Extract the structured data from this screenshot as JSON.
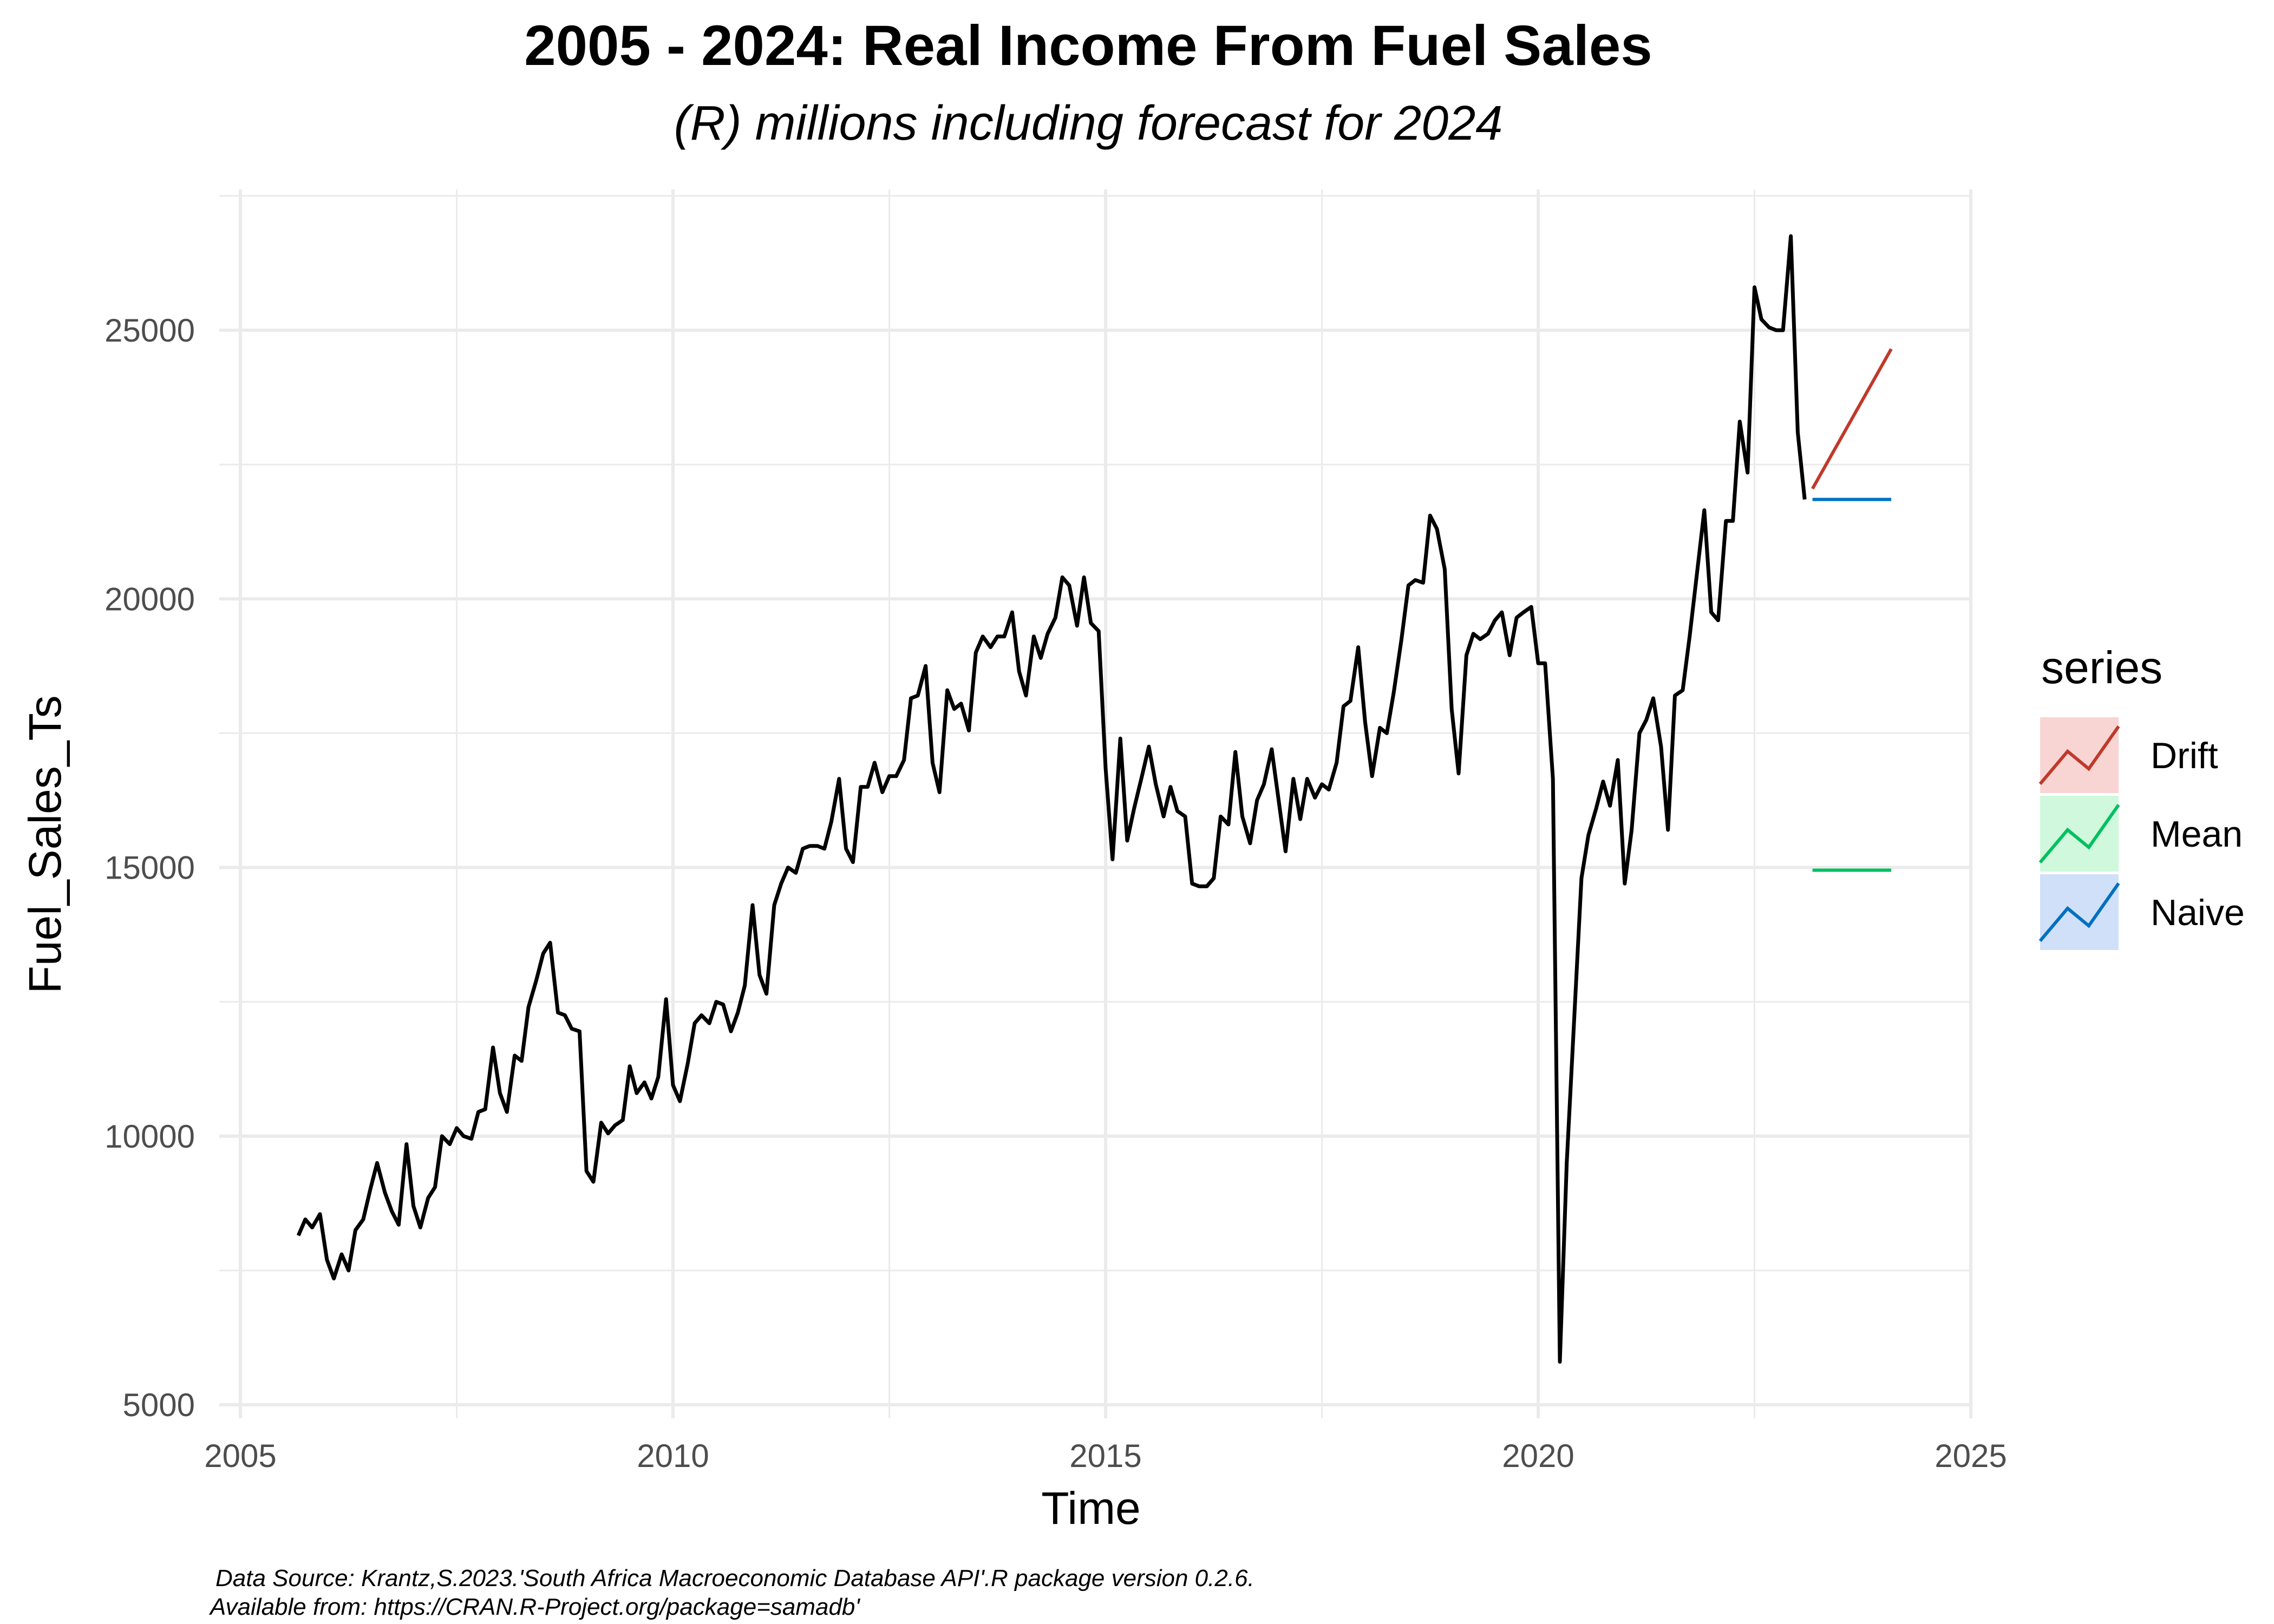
{
  "chart_data": {
    "type": "line",
    "title": "2005 - 2024: Real Income From Fuel Sales",
    "subtitle": "(R) millions including forecast for 2024",
    "xlabel": "Time",
    "ylabel": "Fuel_Sales_Ts",
    "xlim": [
      2005,
      2025
    ],
    "ylim": [
      5000,
      27500
    ],
    "x_ticks": [
      "2005",
      "2010",
      "2015",
      "2020",
      "2025"
    ],
    "y_ticks": [
      "5000",
      "10000",
      "15000",
      "20000",
      "25000"
    ],
    "grid": true,
    "legend": {
      "title": "series",
      "position": "right"
    },
    "caption_lines": [
      "Data Source: Krantz,S.2023.'South Africa Macroeconomic Database API'.R package version 0.2.6.",
      "Available from: https://CRAN.R-Project.org/package=samadb'"
    ],
    "colors": {
      "actual": "#000000",
      "Drift": "#c0392b",
      "Mean": "#00c060",
      "Naive": "#0070c0",
      "Drift_fill": "#f8d5d3",
      "Mean_fill": "#d0f8dc",
      "Naive_fill": "#d0e0f8"
    },
    "series": [
      {
        "key": "actual",
        "x": [
          2005.67,
          2005.75,
          2005.83,
          2005.92,
          2006.0,
          2006.08,
          2006.17,
          2006.25,
          2006.33,
          2006.42,
          2006.5,
          2006.58,
          2006.67,
          2006.75,
          2006.83,
          2006.92,
          2007.0,
          2007.08,
          2007.17,
          2007.25,
          2007.33,
          2007.42,
          2007.5,
          2007.58,
          2007.67,
          2007.75,
          2007.83,
          2007.92,
          2008.0,
          2008.08,
          2008.17,
          2008.25,
          2008.33,
          2008.42,
          2008.5,
          2008.58,
          2008.67,
          2008.75,
          2008.83,
          2008.92,
          2009.0,
          2009.08,
          2009.17,
          2009.25,
          2009.33,
          2009.42,
          2009.5,
          2009.58,
          2009.67,
          2009.75,
          2009.83,
          2009.92,
          2010.0,
          2010.08,
          2010.17,
          2010.25,
          2010.33,
          2010.42,
          2010.5,
          2010.58,
          2010.67,
          2010.75,
          2010.83,
          2010.92,
          2011.0,
          2011.08,
          2011.17,
          2011.25,
          2011.33,
          2011.42,
          2011.5,
          2011.58,
          2011.67,
          2011.75,
          2011.83,
          2011.92,
          2012.0,
          2012.08,
          2012.17,
          2012.25,
          2012.33,
          2012.42,
          2012.5,
          2012.58,
          2012.67,
          2012.75,
          2012.83,
          2012.92,
          2013.0,
          2013.08,
          2013.17,
          2013.25,
          2013.33,
          2013.42,
          2013.5,
          2013.58,
          2013.67,
          2013.75,
          2013.83,
          2013.92,
          2014.0,
          2014.08,
          2014.17,
          2014.25,
          2014.33,
          2014.42,
          2014.5,
          2014.58,
          2014.67,
          2014.75,
          2014.83,
          2014.92,
          2015.0,
          2015.08,
          2015.17,
          2015.25,
          2015.33,
          2015.42,
          2015.5,
          2015.58,
          2015.67,
          2015.75,
          2015.83,
          2015.92,
          2016.0,
          2016.08,
          2016.17,
          2016.25,
          2016.33,
          2016.42,
          2016.5,
          2016.58,
          2016.67,
          2016.75,
          2016.83,
          2016.92,
          2017.0,
          2017.08,
          2017.17,
          2017.25,
          2017.33,
          2017.42,
          2017.5,
          2017.58,
          2017.67,
          2017.75,
          2017.83,
          2017.92,
          2018.0,
          2018.08,
          2018.17,
          2018.25,
          2018.33,
          2018.42,
          2018.5,
          2018.58,
          2018.67,
          2018.75,
          2018.83,
          2018.92,
          2019.0,
          2019.08,
          2019.17,
          2019.25,
          2019.33,
          2019.42,
          2019.5,
          2019.58,
          2019.67,
          2019.75,
          2019.83,
          2019.92,
          2020.0,
          2020.08,
          2020.17,
          2020.25,
          2020.33,
          2020.42,
          2020.5,
          2020.58,
          2020.67,
          2020.75,
          2020.83,
          2020.92,
          2021.0,
          2021.08,
          2021.17,
          2021.25,
          2021.33,
          2021.42,
          2021.5,
          2021.58,
          2021.67,
          2021.75,
          2021.83,
          2021.92,
          2022.0,
          2022.08,
          2022.17,
          2022.25,
          2022.33,
          2022.42,
          2022.5,
          2022.58,
          2022.67,
          2022.75,
          2022.83,
          2022.92,
          2023.0,
          2023.08
        ],
        "y": [
          8150,
          8450,
          8300,
          8550,
          7700,
          7350,
          7800,
          7500,
          8250,
          8450,
          9000,
          9500,
          8950,
          8600,
          8350,
          9850,
          8700,
          8300,
          8850,
          9050,
          10000,
          9850,
          10150,
          10000,
          9950,
          10450,
          10500,
          11650,
          10800,
          10450,
          11500,
          11400,
          12400,
          12900,
          13400,
          13600,
          12300,
          12250,
          12000,
          11950,
          9350,
          9150,
          10250,
          10050,
          10200,
          10300,
          11300,
          10800,
          11000,
          10700,
          11100,
          12550,
          10950,
          10650,
          11350,
          12100,
          12250,
          12100,
          12500,
          12450,
          11950,
          12300,
          12800,
          14300,
          13000,
          12650,
          14300,
          14700,
          15000,
          14900,
          15350,
          15400,
          15400,
          15350,
          15850,
          16650,
          15350,
          15100,
          16500,
          16500,
          16950,
          16400,
          16700,
          16700,
          17000,
          18150,
          18200,
          18750,
          16950,
          16400,
          18300,
          17950,
          18050,
          17550,
          19000,
          19300,
          19100,
          19300,
          19300,
          19750,
          18650,
          18200,
          19300,
          18900,
          19350,
          19650,
          20400,
          20250,
          19500,
          20400,
          19550,
          19400,
          16850,
          15150,
          17400,
          15500,
          16100,
          16700,
          17250,
          16550,
          15950,
          16500,
          16050,
          15950,
          14700,
          14650,
          14650,
          14800,
          15950,
          15800,
          17150,
          15950,
          15450,
          16250,
          16550,
          17200,
          16250,
          15300,
          16650,
          15900,
          16650,
          16300,
          16550,
          16450,
          16950,
          18000,
          18100,
          19100,
          17700,
          16700,
          17600,
          17500,
          18250,
          19250,
          20250,
          20350,
          20300,
          21550,
          21300,
          20550,
          17950,
          16750,
          18950,
          19350,
          19250,
          19350,
          19600,
          19750,
          18950,
          19650,
          19750,
          19850,
          18800,
          18800,
          16650,
          5800,
          9500,
          12300,
          14800,
          15600,
          16100,
          16600,
          16150,
          17000,
          14700,
          15700,
          17500,
          17750,
          18150,
          17250,
          15700,
          18200,
          18300,
          19300,
          20400,
          21650,
          19750,
          19600,
          21450,
          21450,
          23300,
          22350,
          25800,
          25200,
          25050,
          25000,
          25000,
          26750,
          23100,
          21850
        ]
      },
      {
        "key": "Drift",
        "name": "Drift",
        "x": [
          2023.17,
          2024.08
        ],
        "y": [
          22050,
          24650
        ]
      },
      {
        "key": "Mean",
        "name": "Mean",
        "x": [
          2023.17,
          2024.08
        ],
        "y": [
          14950,
          14950
        ]
      },
      {
        "key": "Naive",
        "name": "Naive",
        "x": [
          2023.17,
          2024.08
        ],
        "y": [
          21850,
          21850
        ]
      }
    ]
  }
}
